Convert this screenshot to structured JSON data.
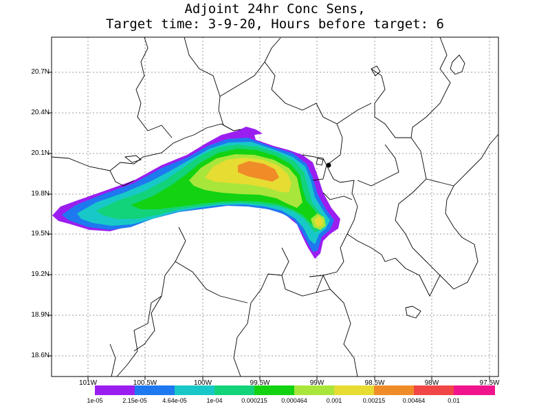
{
  "title": {
    "line1": "Adjoint 24hr Conc Sens,",
    "line2": "Target time: 3-9-20, Hours before target: 6"
  },
  "axes": {
    "y_labels": [
      "20.7N",
      "20.4N",
      "20.1N",
      "19.8N",
      "19.5N",
      "19.2N",
      "18.9N",
      "18.6N"
    ],
    "x_labels": [
      "101W",
      "100.5W",
      "100W",
      "99.5W",
      "99W",
      "98.5W",
      "98W",
      "97.5W"
    ],
    "grid": "dotted"
  },
  "colorbar": {
    "labels": [
      "1e-05",
      "2.15e-05",
      "4.64e-05",
      "1e-04",
      "0.000215",
      "0.000464",
      "0.001",
      "0.00215",
      "0.00464",
      "0.01"
    ],
    "colors": [
      "#9b1ef0",
      "#1e78f0",
      "#18c8c8",
      "#12d27a",
      "#12d212",
      "#a8e63c",
      "#e6dc32",
      "#f08c28",
      "#f04646",
      "#f0148c"
    ]
  },
  "map": {
    "region": "Central Mexico",
    "boundary_color": "#000000",
    "background": "#ffffff"
  }
}
